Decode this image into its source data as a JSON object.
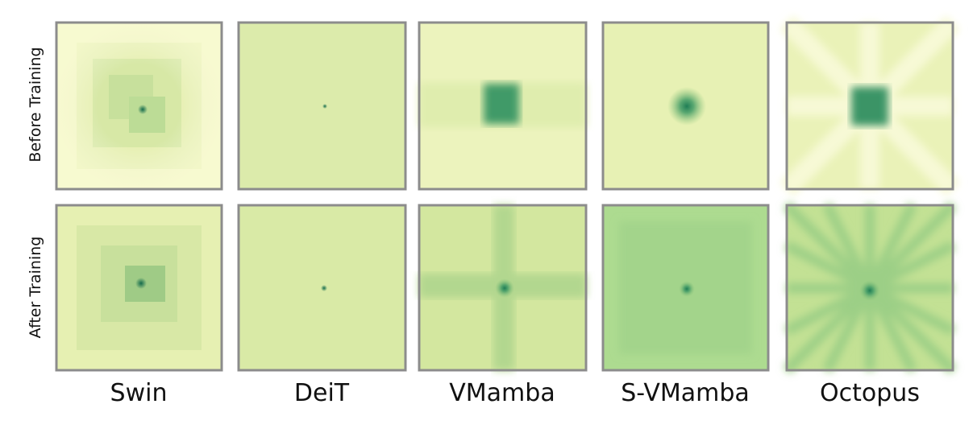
{
  "row_labels": [
    "Before Training",
    "After Training"
  ],
  "column_labels": [
    "Swin",
    "DeiT",
    "VMamba",
    "S-VMamba",
    "Octopus"
  ]
}
